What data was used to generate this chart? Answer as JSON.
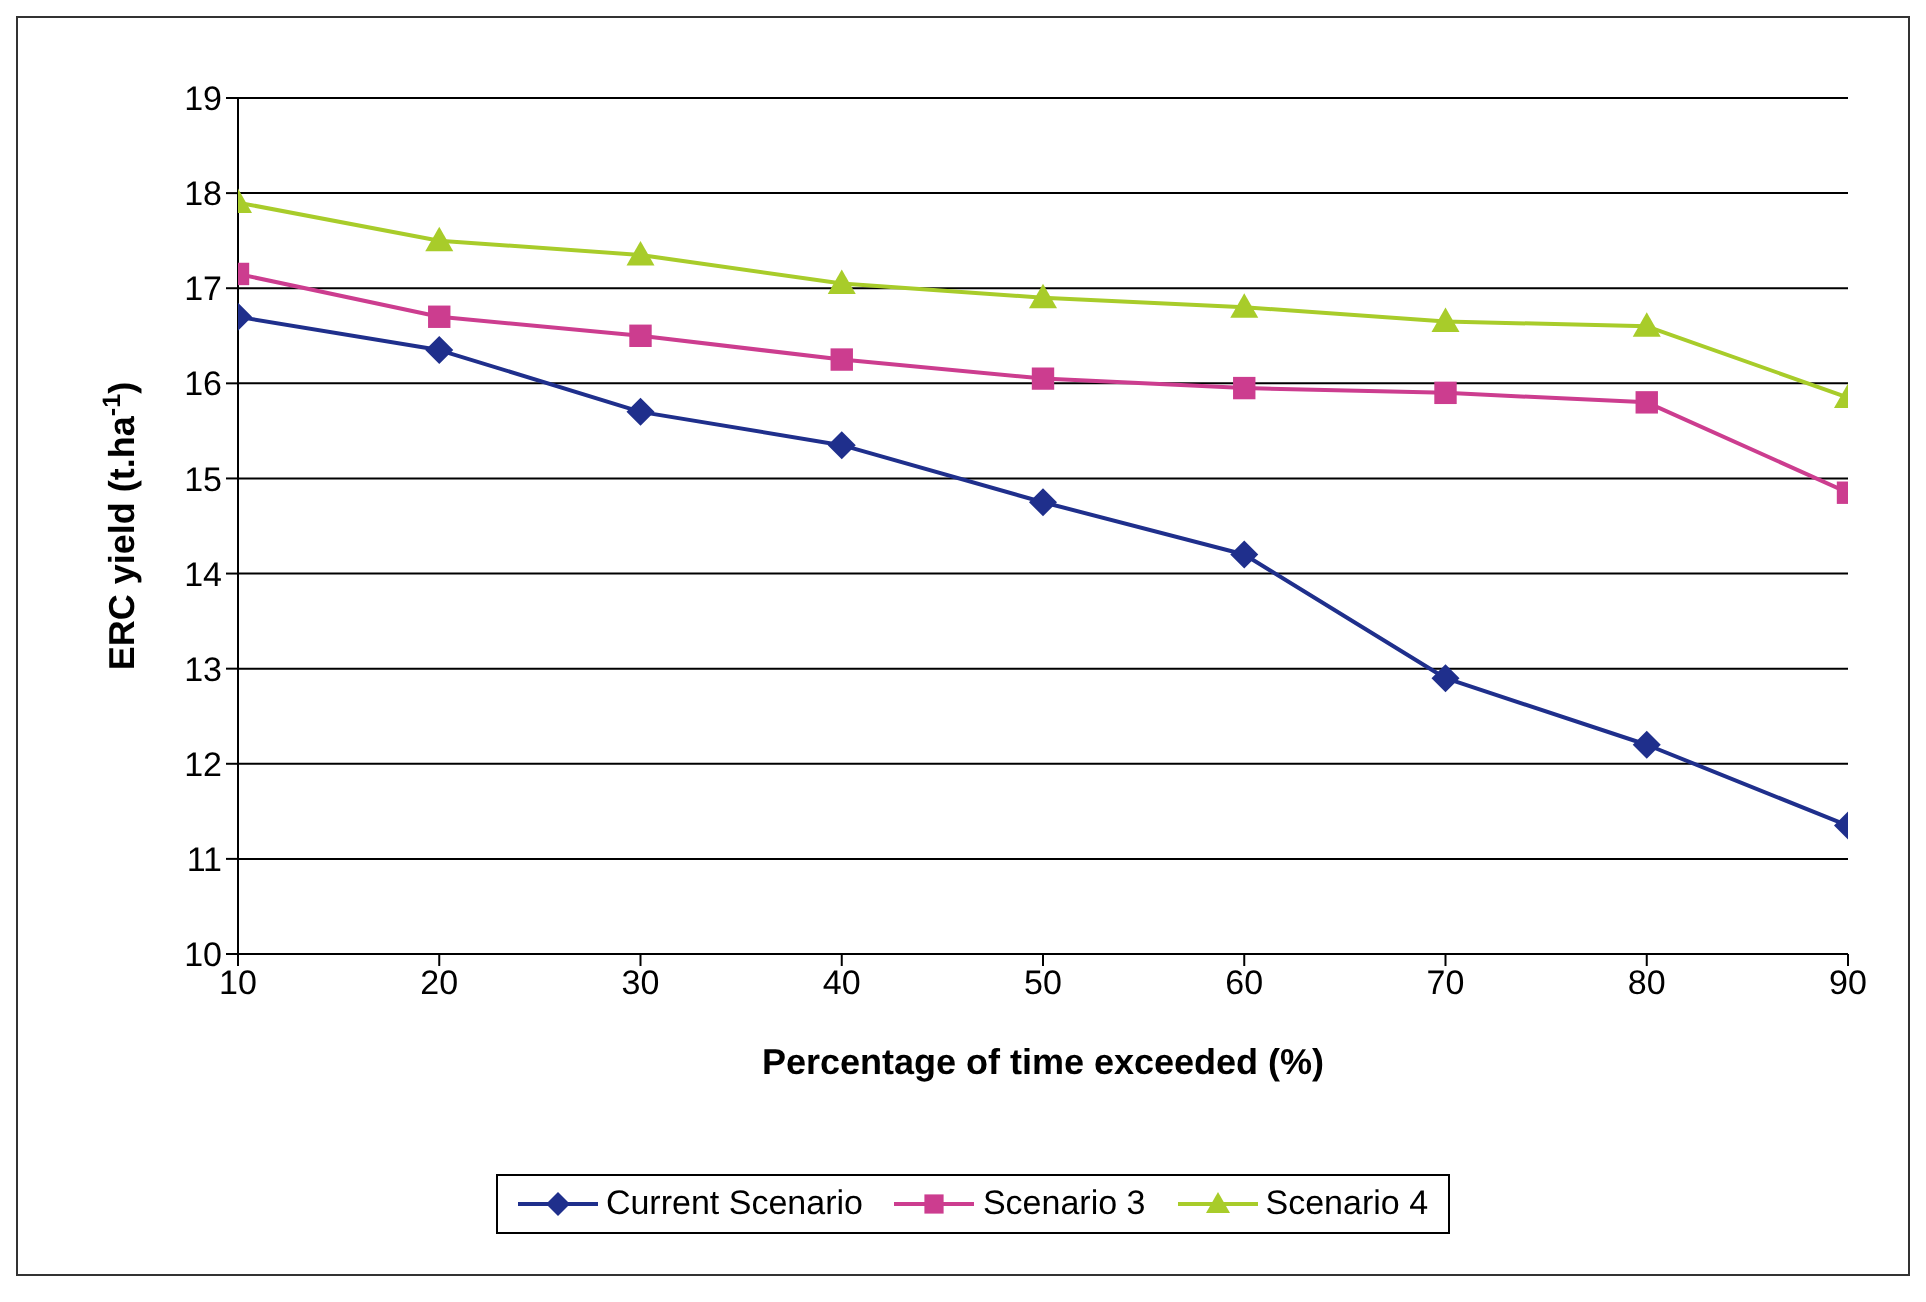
{
  "chart_data": {
    "type": "line",
    "xlabel": "Percentage of time exceeded (%)",
    "ylabel": "ERC yield (t.ha$^{-1}$)",
    "x": [
      10,
      20,
      30,
      40,
      50,
      60,
      70,
      80,
      90
    ],
    "series": [
      {
        "name": "Current Scenario",
        "color": "#1f2f8c",
        "marker": "diamond",
        "values": [
          16.7,
          16.35,
          15.7,
          15.35,
          14.75,
          14.2,
          12.9,
          12.2,
          11.35
        ]
      },
      {
        "name": "Scenario 3",
        "color": "#cc3d8f",
        "marker": "square",
        "values": [
          17.15,
          16.7,
          16.5,
          16.25,
          16.05,
          15.95,
          15.9,
          15.8,
          14.85
        ]
      },
      {
        "name": "Scenario 4",
        "color": "#a8cc2a",
        "marker": "triangle",
        "values": [
          17.9,
          17.5,
          17.35,
          17.05,
          16.9,
          16.8,
          16.65,
          16.6,
          15.85
        ]
      }
    ],
    "xlim": [
      10,
      90
    ],
    "xticks": [
      10,
      20,
      30,
      40,
      50,
      60,
      70,
      80,
      90
    ],
    "ylim": [
      10,
      19
    ],
    "yticks": [
      10,
      11,
      12,
      13,
      14,
      15,
      16,
      17,
      18,
      19
    ],
    "grid": "y",
    "legend": "bottom",
    "line_style": "solid"
  }
}
